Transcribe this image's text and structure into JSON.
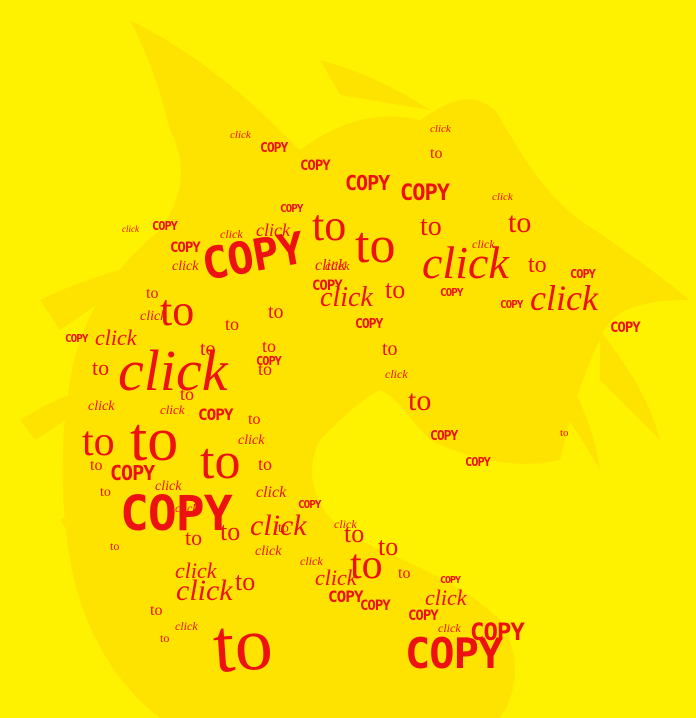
{
  "colors": {
    "background": "#FFF200",
    "silhouette": "#FFE100",
    "word": "#EE1111"
  },
  "words": [
    {
      "kind": "click",
      "text": "click"
    },
    {
      "kind": "copy",
      "text": "COPY"
    },
    {
      "kind": "copy",
      "text": "COPY"
    },
    {
      "kind": "click",
      "text": "click"
    },
    {
      "kind": "copy",
      "text": "COPY"
    },
    {
      "kind": "copy",
      "text": "COPY"
    },
    {
      "kind": "to",
      "text": "to"
    },
    {
      "kind": "click",
      "text": "click"
    },
    {
      "kind": "copy",
      "text": "COPY"
    },
    {
      "kind": "to",
      "text": "to"
    },
    {
      "kind": "to",
      "text": "to"
    },
    {
      "kind": "to",
      "text": "to"
    },
    {
      "kind": "to",
      "text": "to"
    },
    {
      "kind": "click",
      "text": "click"
    },
    {
      "kind": "copy",
      "text": "COPY"
    },
    {
      "kind": "click",
      "text": "click"
    },
    {
      "kind": "copy",
      "text": "COPY"
    },
    {
      "kind": "click",
      "text": "click"
    },
    {
      "kind": "click",
      "text": "click"
    },
    {
      "kind": "to",
      "text": "to"
    },
    {
      "kind": "copy",
      "text": "COPY"
    },
    {
      "kind": "click",
      "text": "click"
    },
    {
      "kind": "click",
      "text": "click"
    },
    {
      "kind": "click",
      "text": "click"
    },
    {
      "kind": "click",
      "text": "click"
    },
    {
      "kind": "to",
      "text": "to"
    },
    {
      "kind": "copy",
      "text": "COPY"
    },
    {
      "kind": "click",
      "text": "click"
    },
    {
      "kind": "copy",
      "text": "COPY"
    },
    {
      "kind": "to",
      "text": "to"
    },
    {
      "kind": "click",
      "text": "click"
    },
    {
      "kind": "to",
      "text": "to"
    },
    {
      "kind": "copy",
      "text": "COPY"
    },
    {
      "kind": "copy",
      "text": "COPY"
    },
    {
      "kind": "to",
      "text": "to"
    },
    {
      "kind": "click",
      "text": "click"
    },
    {
      "kind": "to",
      "text": "to"
    },
    {
      "kind": "to",
      "text": "to"
    },
    {
      "kind": "copy",
      "text": "COPY"
    },
    {
      "kind": "copy",
      "text": "COPY"
    },
    {
      "kind": "click",
      "text": "click"
    },
    {
      "kind": "to",
      "text": "to"
    },
    {
      "kind": "to",
      "text": "to"
    },
    {
      "kind": "to",
      "text": "to"
    },
    {
      "kind": "click",
      "text": "click"
    },
    {
      "kind": "copy",
      "text": "COPY"
    },
    {
      "kind": "copy",
      "text": "COPY"
    },
    {
      "kind": "to",
      "text": "to"
    },
    {
      "kind": "click",
      "text": "click"
    },
    {
      "kind": "to",
      "text": "to"
    },
    {
      "kind": "to",
      "text": "to"
    },
    {
      "kind": "click",
      "text": "click"
    },
    {
      "kind": "copy",
      "text": "COPY"
    },
    {
      "kind": "to",
      "text": "to"
    },
    {
      "kind": "to",
      "text": "to"
    },
    {
      "kind": "to",
      "text": "to"
    },
    {
      "kind": "to",
      "text": "to"
    },
    {
      "kind": "copy",
      "text": "COPY"
    },
    {
      "kind": "click",
      "text": "click"
    },
    {
      "kind": "to",
      "text": "to"
    },
    {
      "kind": "to",
      "text": "to"
    },
    {
      "kind": "click",
      "text": "click"
    },
    {
      "kind": "copy",
      "text": "COPY"
    },
    {
      "kind": "to",
      "text": "to"
    },
    {
      "kind": "click",
      "text": "click"
    },
    {
      "kind": "copy",
      "text": "COPY"
    },
    {
      "kind": "click",
      "text": "click"
    },
    {
      "kind": "click",
      "text": "click"
    },
    {
      "kind": "to",
      "text": "to"
    },
    {
      "kind": "copy",
      "text": "COPY"
    },
    {
      "kind": "click",
      "text": "click"
    },
    {
      "kind": "to",
      "text": "to"
    },
    {
      "kind": "copy",
      "text": "COPY"
    },
    {
      "kind": "to",
      "text": "to"
    },
    {
      "kind": "to",
      "text": "to"
    },
    {
      "kind": "to",
      "text": "to"
    },
    {
      "kind": "click",
      "text": "click"
    },
    {
      "kind": "click",
      "text": "click"
    },
    {
      "kind": "to",
      "text": "to"
    },
    {
      "kind": "to",
      "text": "to"
    },
    {
      "kind": "click",
      "text": "click"
    },
    {
      "kind": "click",
      "text": "click"
    },
    {
      "kind": "to",
      "text": "to"
    },
    {
      "kind": "to",
      "text": "to"
    },
    {
      "kind": "to",
      "text": "to"
    },
    {
      "kind": "copy",
      "text": "COPY"
    },
    {
      "kind": "click",
      "text": "click"
    },
    {
      "kind": "click",
      "text": "click"
    },
    {
      "kind": "to",
      "text": "to"
    },
    {
      "kind": "to",
      "text": "to"
    },
    {
      "kind": "click",
      "text": "click"
    },
    {
      "kind": "copy",
      "text": "COPY"
    },
    {
      "kind": "copy",
      "text": "COPY"
    },
    {
      "kind": "copy",
      "text": "COPY"
    },
    {
      "kind": "click",
      "text": "click"
    },
    {
      "kind": "click",
      "text": "click"
    },
    {
      "kind": "copy",
      "text": "COPY"
    },
    {
      "kind": "copy",
      "text": "COPY"
    },
    {
      "kind": "to",
      "text": "to"
    }
  ]
}
